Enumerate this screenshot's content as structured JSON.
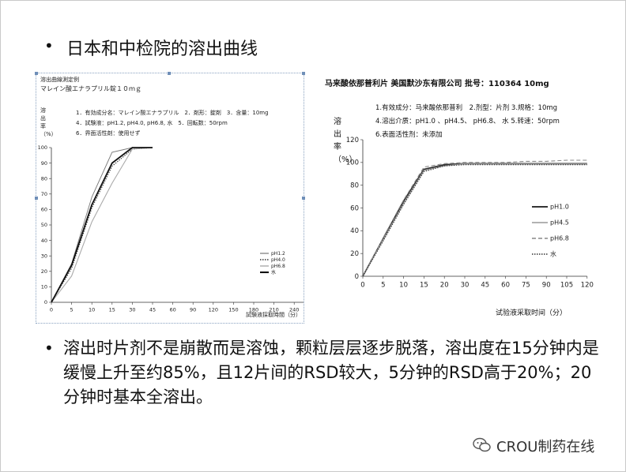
{
  "slide": {
    "bullet1": "日本和中检院的溶出曲线",
    "bullet2": "溶出时片剂不是崩散而是溶蚀，颗粒层层逐步脱落，溶出度在15分钟内是缓慢上升至约85%，且12片间的RSD较大，5分钟的RSD高于20%；20分钟时基本全溶出。",
    "bullet_symbol": "•",
    "watermark": "CROU制药在线",
    "watermark_icon": "wechat-icon"
  },
  "jp": {
    "header1": "溶出曲線測定例",
    "header2": "マレイン酸エナラプリル錠１０ｍｇ",
    "info1": "1．有効成分名：マレイン酸エナラプリル　2．剤形：錠剤　3．含量：10mg",
    "info2": "4．試験液：pH1.2, pH4.0, pH6.8, 水　5．回転数：50rpm",
    "info3": "6．界面活性剤：使用せず",
    "ylabel": "溶出率（%）",
    "xlabel": "試験液採取時間（分）"
  },
  "cn": {
    "title": "马来酸依那普利片 美国默沙东有限公司 批号：110364 10mg",
    "info1": "1.有效成分：马来酸依那普利　2.剂型：片剂 3.规格：10mg",
    "info2": "4.溶出介质：pH1.0 、pH4.5、 pH6.8、 水 5.转速：50rpm",
    "info3": "6.表面活性剂：未添加",
    "ylabel": "溶出率（%）",
    "xlabel": "试验液采取时间（分）"
  },
  "chart_data": [
    {
      "type": "line",
      "title": "溶出曲線測定例",
      "xlabel": "試験液採取時間（分）",
      "ylabel": "溶出率（%）",
      "xlim": [
        0,
        360
      ],
      "ylim": [
        0,
        100
      ],
      "x_ticks": [
        0,
        5,
        10,
        15,
        30,
        45,
        60,
        90,
        120,
        150,
        180,
        210,
        240,
        270,
        300,
        330,
        360
      ],
      "y_ticks": [
        0,
        10,
        20,
        30,
        40,
        50,
        60,
        70,
        80,
        90,
        100
      ],
      "legend_position": "bottom-right",
      "x": [
        0,
        5,
        10,
        15,
        30,
        45
      ],
      "series": [
        {
          "name": "pH1.2",
          "style": "solid-thin",
          "color": "#777777",
          "values": [
            0,
            25,
            68,
            97,
            100,
            100
          ]
        },
        {
          "name": "pH4.0",
          "style": "dotted",
          "color": "#333333",
          "values": [
            0,
            22,
            61,
            88,
            99,
            100
          ]
        },
        {
          "name": "pH6.8",
          "style": "solid-grey",
          "color": "#aaaaaa",
          "values": [
            0,
            17,
            52,
            77,
            99,
            100
          ]
        },
        {
          "name": "水",
          "style": "solid-bold",
          "color": "#111111",
          "values": [
            0,
            24,
            63,
            90,
            100,
            100
          ]
        }
      ]
    },
    {
      "type": "line",
      "title": "马来酸依那普利片 美国默沙东有限公司 批号：110364 10mg",
      "xlabel": "试验液采取时间（分）",
      "ylabel": "溶出率（%）",
      "xlim": [
        0,
        120
      ],
      "ylim": [
        0,
        120
      ],
      "x_ticks": [
        0,
        5,
        10,
        15,
        20,
        30,
        45,
        60,
        75,
        90,
        105,
        120
      ],
      "y_ticks": [
        0,
        20,
        40,
        60,
        80,
        100,
        120
      ],
      "legend_position": "right",
      "x": [
        0,
        5,
        10,
        15,
        20,
        30,
        45,
        60,
        75,
        90,
        105,
        120
      ],
      "series": [
        {
          "name": "pH1.0",
          "style": "solid-bold",
          "color": "#333333",
          "values": [
            0,
            33,
            66,
            94,
            98,
            99,
            99,
            99,
            99,
            99,
            99,
            99
          ]
        },
        {
          "name": "pH4.5",
          "style": "solid-grey",
          "color": "#999999",
          "values": [
            0,
            32,
            64,
            93,
            97,
            99,
            99,
            99,
            99,
            99,
            99,
            99
          ]
        },
        {
          "name": "pH6.8",
          "style": "dashed",
          "color": "#888888",
          "values": [
            0,
            34,
            67,
            96,
            99,
            100,
            100,
            100,
            101,
            101,
            102,
            102
          ]
        },
        {
          "name": "水",
          "style": "dotted",
          "color": "#333333",
          "values": [
            0,
            31,
            63,
            92,
            97,
            98,
            98,
            98,
            98,
            98,
            98,
            98
          ]
        }
      ]
    }
  ]
}
